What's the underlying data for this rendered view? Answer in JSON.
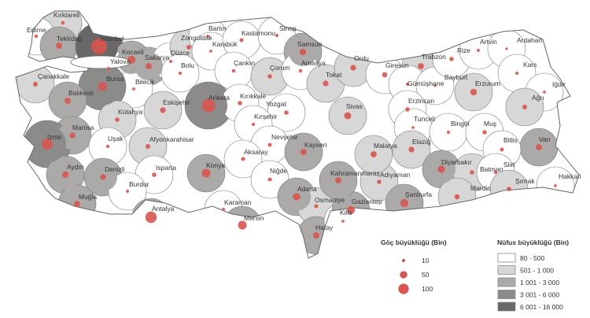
{
  "legend": {
    "migration_title": "Göç büyüklüğü (Bin)",
    "migration_items": [
      {
        "label": "10",
        "value": 10
      },
      {
        "label": "50",
        "value": 50
      },
      {
        "label": "100",
        "value": 100
      }
    ],
    "population_title": "Nüfus büyüklüğü (Bin)",
    "population_classes": [
      {
        "label": "80 - 500",
        "color": "#ffffff"
      },
      {
        "label": "501 - 1 000",
        "color": "#d7d7d7"
      },
      {
        "label": "1 001 - 3 000",
        "color": "#acaaa9"
      },
      {
        "label": "3 001 - 6 000",
        "color": "#8d8b8a"
      },
      {
        "label": "6 001 - 16 000",
        "color": "#6a6867"
      }
    ]
  },
  "colors": {
    "dot": "#d9544f",
    "border": "#666666"
  },
  "provinces": [
    {
      "name": "Kırklareli",
      "pop_class": 1,
      "migration": 12
    },
    {
      "name": "Edirne",
      "pop_class": 0,
      "migration": 12
    },
    {
      "name": "Tekirdağ",
      "pop_class": 2,
      "migration": 35
    },
    {
      "name": "İstanbul",
      "pop_class": 4,
      "migration": 230
    },
    {
      "name": "Kocaeli",
      "pop_class": 2,
      "migration": 60
    },
    {
      "name": "Yalova",
      "pop_class": 0,
      "migration": 10
    },
    {
      "name": "Sakarya",
      "pop_class": 2,
      "migration": 35
    },
    {
      "name": "Düzce",
      "pop_class": 0,
      "migration": 10
    },
    {
      "name": "Zonguldak",
      "pop_class": 1,
      "migration": 20
    },
    {
      "name": "Bartın",
      "pop_class": 0,
      "migration": 8
    },
    {
      "name": "Karabük",
      "pop_class": 0,
      "migration": 8
    },
    {
      "name": "Kastamonu",
      "pop_class": 0,
      "migration": 15
    },
    {
      "name": "Sinop",
      "pop_class": 0,
      "migration": 10
    },
    {
      "name": "Samsun",
      "pop_class": 2,
      "migration": 40
    },
    {
      "name": "Çankırı",
      "pop_class": 0,
      "migration": 12
    },
    {
      "name": "Çorum",
      "pop_class": 1,
      "migration": 18
    },
    {
      "name": "Amasya",
      "pop_class": 0,
      "migration": 12
    },
    {
      "name": "Bolu",
      "pop_class": 0,
      "migration": 10
    },
    {
      "name": "Bilecik",
      "pop_class": 0,
      "migration": 8
    },
    {
      "name": "Çanakkale",
      "pop_class": 1,
      "migration": 20
    },
    {
      "name": "Bursa",
      "pop_class": 3,
      "migration": 70
    },
    {
      "name": "Balıkesir",
      "pop_class": 2,
      "migration": 35
    },
    {
      "name": "Eskişehir",
      "pop_class": 1,
      "migration": 30
    },
    {
      "name": "Ankara",
      "pop_class": 3,
      "migration": 160
    },
    {
      "name": "Kırıkkale",
      "pop_class": 0,
      "migration": 18
    },
    {
      "name": "Yozgat",
      "pop_class": 0,
      "migration": 18
    },
    {
      "name": "Kütahya",
      "pop_class": 1,
      "migration": 18
    },
    {
      "name": "Kırşehir",
      "pop_class": 0,
      "migration": 10
    },
    {
      "name": "Manisa",
      "pop_class": 2,
      "migration": 30
    },
    {
      "name": "İzmir",
      "pop_class": 3,
      "migration": 110
    },
    {
      "name": "Uşak",
      "pop_class": 0,
      "migration": 10
    },
    {
      "name": "Afyonkarahisar",
      "pop_class": 1,
      "migration": 20
    },
    {
      "name": "Nevşehir",
      "pop_class": 0,
      "migration": 15
    },
    {
      "name": "Aksaray",
      "pop_class": 0,
      "migration": 15
    },
    {
      "name": "Aydın",
      "pop_class": 2,
      "migration": 40
    },
    {
      "name": "Denizli",
      "pop_class": 2,
      "migration": 30
    },
    {
      "name": "Isparta",
      "pop_class": 0,
      "migration": 18
    },
    {
      "name": "Burdur",
      "pop_class": 0,
      "migration": 10
    },
    {
      "name": "Muğla",
      "pop_class": 2,
      "migration": 35
    },
    {
      "name": "Konya",
      "pop_class": 2,
      "migration": 70
    },
    {
      "name": "Antalya",
      "pop_class": 2,
      "migration": 120
    },
    {
      "name": "Karaman",
      "pop_class": 0,
      "migration": 10
    },
    {
      "name": "Mersin",
      "pop_class": 2,
      "migration": 70
    },
    {
      "name": "Niğde",
      "pop_class": 0,
      "migration": 15
    },
    {
      "name": "Kayseri",
      "pop_class": 2,
      "migration": 35
    },
    {
      "name": "Adana",
      "pop_class": 2,
      "migration": 50
    },
    {
      "name": "Osmaniye",
      "pop_class": 1,
      "migration": 15
    },
    {
      "name": "Hatay",
      "pop_class": 2,
      "migration": 35
    },
    {
      "name": "Kilis",
      "pop_class": 0,
      "migration": 8
    },
    {
      "name": "Gaziantep",
      "pop_class": 2,
      "migration": 60
    },
    {
      "name": "Kahramanmaraş",
      "pop_class": 2,
      "migration": 35
    },
    {
      "name": "Adıyaman",
      "pop_class": 1,
      "migration": 18
    },
    {
      "name": "Şanlıurfa",
      "pop_class": 2,
      "migration": 60
    },
    {
      "name": "Malatya",
      "pop_class": 1,
      "migration": 35
    },
    {
      "name": "Sivas",
      "pop_class": 1,
      "migration": 45
    },
    {
      "name": "Tokat",
      "pop_class": 1,
      "migration": 30
    },
    {
      "name": "Ordu",
      "pop_class": 1,
      "migration": 30
    },
    {
      "name": "Giresun",
      "pop_class": 0,
      "migration": 25
    },
    {
      "name": "Trabzon",
      "pop_class": 1,
      "migration": 35
    },
    {
      "name": "Gümüşhane",
      "pop_class": 0,
      "migration": 10
    },
    {
      "name": "Bayburt",
      "pop_class": 0,
      "migration": 5
    },
    {
      "name": "Rize",
      "pop_class": 0,
      "migration": 18
    },
    {
      "name": "Artvin",
      "pop_class": 0,
      "migration": 10
    },
    {
      "name": "Ardahan",
      "pop_class": 0,
      "migration": 5
    },
    {
      "name": "Kars",
      "pop_class": 0,
      "migration": 10
    },
    {
      "name": "Iğdır",
      "pop_class": 0,
      "migration": 8
    },
    {
      "name": "Erzurum",
      "pop_class": 1,
      "migration": 40
    },
    {
      "name": "Erzincan",
      "pop_class": 0,
      "migration": 18
    },
    {
      "name": "Tunceli",
      "pop_class": 0,
      "migration": 8
    },
    {
      "name": "Elazığ",
      "pop_class": 1,
      "migration": 30
    },
    {
      "name": "Bingöl",
      "pop_class": 0,
      "migration": 10
    },
    {
      "name": "Muş",
      "pop_class": 0,
      "migration": 18
    },
    {
      "name": "Ağrı",
      "pop_class": 1,
      "migration": 20
    },
    {
      "name": "Van",
      "pop_class": 2,
      "migration": 35
    },
    {
      "name": "Bitlis",
      "pop_class": 0,
      "migration": 15
    },
    {
      "name": "Diyarbakır",
      "pop_class": 2,
      "migration": 50
    },
    {
      "name": "Batman",
      "pop_class": 1,
      "migration": 18
    },
    {
      "name": "Siirt",
      "pop_class": 0,
      "migration": 12
    },
    {
      "name": "Şırnak",
      "pop_class": 1,
      "migration": 18
    },
    {
      "name": "Hakkari",
      "pop_class": 0,
      "migration": 8
    },
    {
      "name": "Mardin",
      "pop_class": 1,
      "migration": 25
    }
  ]
}
